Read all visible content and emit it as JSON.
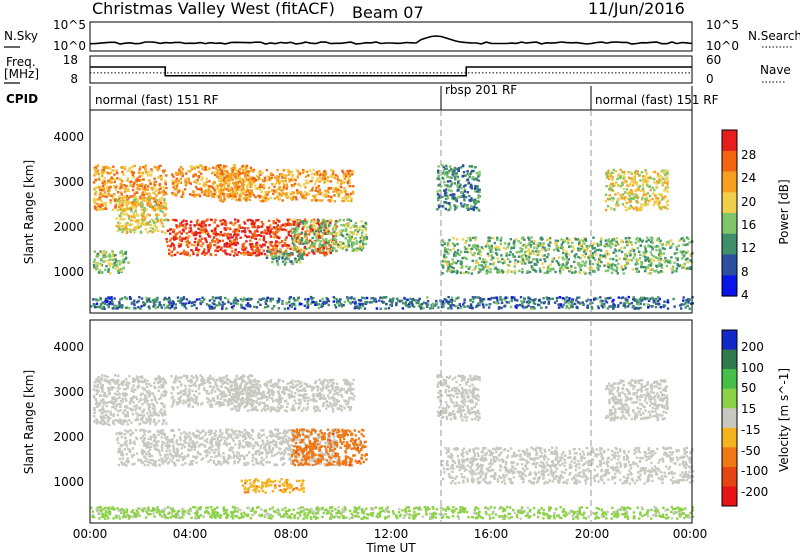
{
  "header": {
    "title": "Christmas Valley West (fitACF)",
    "beam": "Beam 07",
    "date": "11/Jun/2016"
  },
  "noise_panel": {
    "left_label": "N.Sky",
    "right_label": "N.Search",
    "left_ticks": [
      "10^5",
      "10^0"
    ],
    "right_ticks": [
      "10^5",
      "10^0"
    ]
  },
  "freq_panel": {
    "left_label": "Freq. [MHz]",
    "left_label_line1": "Freq.",
    "left_label_line2": "[MHz]",
    "right_label": "Nave",
    "left_ticks": [
      "18",
      "8"
    ],
    "right_ticks": [
      "60",
      "0"
    ]
  },
  "cpid": {
    "label": "CPID",
    "segments": [
      {
        "text": "normal (fast) 151 RF",
        "start_hour": 0
      },
      {
        "text": "rbsp 201 RF",
        "start_hour": 14
      },
      {
        "text": "normal (fast) 151 RF",
        "start_hour": 20
      }
    ]
  },
  "time_axis": {
    "label": "Time UT",
    "ticks": [
      "00:00",
      "04:00",
      "08:00",
      "12:00",
      "16:00",
      "20:00",
      "00:00"
    ],
    "range_hours": [
      0,
      24
    ]
  },
  "colors": {
    "power": [
      "#0a14e6",
      "#2c4ea0",
      "#3e8f6a",
      "#7ec46a",
      "#f0d04a",
      "#f5a020",
      "#f26412",
      "#e61e1e"
    ],
    "velocity": [
      "#1428c8",
      "#2e7a4e",
      "#46c046",
      "#8cd246",
      "#c8c8c0",
      "#f5b41e",
      "#f07814",
      "#e64614",
      "#e61414"
    ]
  },
  "chart_data": [
    {
      "type": "line",
      "title": "",
      "series": [
        {
          "name": "N.Sky",
          "style": "solid"
        },
        {
          "name": "N.Search",
          "style": "dotted"
        }
      ],
      "ylabel": "N.Sky",
      "ylim_log10": [
        0,
        5
      ]
    },
    {
      "type": "line",
      "series": [
        {
          "name": "Freq.",
          "style": "solid",
          "steps": [
            {
              "x": 0,
              "y": 14
            },
            {
              "x": 3,
              "y": 10.5
            },
            {
              "x": 15,
              "y": 14
            },
            {
              "x": 24,
              "y": 14
            }
          ]
        },
        {
          "name": "Nave",
          "style": "dotted",
          "steps": [
            {
              "x": 0,
              "y": 22
            },
            {
              "x": 24,
              "y": 22
            }
          ]
        }
      ],
      "ylabel": "Freq. [MHz]",
      "ylim": [
        8,
        18
      ],
      "ylim_right": [
        0,
        60
      ]
    },
    {
      "type": "heatmap",
      "quantity": "Power",
      "ylabel": "Slant Range [km]",
      "xlabel": "",
      "ylim": [
        0,
        4500
      ],
      "yticks": [
        "1000",
        "2000",
        "3000",
        "4000"
      ],
      "colorbar": {
        "label": "Power [dB]",
        "ticks": [
          "28",
          "24",
          "20",
          "16",
          "12",
          "8",
          "4"
        ],
        "range": [
          0,
          32
        ]
      },
      "regions": [
        {
          "t": [
            0.1,
            1.5
          ],
          "r": [
            900,
            1400
          ],
          "v": 14
        },
        {
          "t": [
            0.1,
            3.0
          ],
          "r": [
            2300,
            3300
          ],
          "v": 22
        },
        {
          "t": [
            1.0,
            3.0
          ],
          "r": [
            1800,
            2600
          ],
          "v": 18
        },
        {
          "t": [
            3.2,
            6.5
          ],
          "r": [
            2600,
            3300
          ],
          "v": 23
        },
        {
          "t": [
            3.0,
            9.8
          ],
          "r": [
            1300,
            2100
          ],
          "v": 28
        },
        {
          "t": [
            5.0,
            10.5
          ],
          "r": [
            2500,
            3200
          ],
          "v": 22
        },
        {
          "t": [
            7.0,
            8.5
          ],
          "r": [
            1100,
            1400
          ],
          "v": 12
        },
        {
          "t": [
            8.0,
            11.0
          ],
          "r": [
            1400,
            2100
          ],
          "v": 14
        },
        {
          "t": [
            13.8,
            15.5
          ],
          "r": [
            2300,
            3300
          ],
          "v": 10
        },
        {
          "t": [
            14.0,
            24.0
          ],
          "r": [
            900,
            1700
          ],
          "v": 13
        },
        {
          "t": [
            20.5,
            23.0
          ],
          "r": [
            2300,
            3200
          ],
          "v": 18
        },
        {
          "t": [
            0.0,
            24.0
          ],
          "r": [
            120,
            380
          ],
          "v": 8
        }
      ]
    },
    {
      "type": "heatmap",
      "quantity": "Velocity",
      "ylabel": "Slant Range [km]",
      "xlabel": "Time UT",
      "ylim": [
        0,
        4500
      ],
      "yticks": [
        "1000",
        "2000",
        "3000",
        "4000"
      ],
      "colorbar": {
        "label": "Velocity [m s^-1]",
        "ticks": [
          "200",
          "100",
          "50",
          "15",
          "-15",
          "-50",
          "-100",
          "-200"
        ],
        "range": [
          -250,
          250
        ]
      },
      "regions": [
        {
          "t": [
            0.1,
            3.0
          ],
          "r": [
            2200,
            3300
          ],
          "v": 0
        },
        {
          "t": [
            1.0,
            9.8
          ],
          "r": [
            1300,
            2100
          ],
          "v": 0
        },
        {
          "t": [
            3.2,
            6.5
          ],
          "r": [
            2600,
            3300
          ],
          "v": 0
        },
        {
          "t": [
            5.5,
            10.5
          ],
          "r": [
            2500,
            3200
          ],
          "v": 0
        },
        {
          "t": [
            8.0,
            11.0
          ],
          "r": [
            1300,
            2100
          ],
          "v": -120
        },
        {
          "t": [
            6.0,
            8.5
          ],
          "r": [
            700,
            1000
          ],
          "v": -70
        },
        {
          "t": [
            13.8,
            15.5
          ],
          "r": [
            2300,
            3300
          ],
          "v": 5
        },
        {
          "t": [
            14.0,
            24.0
          ],
          "r": [
            900,
            1700
          ],
          "v": 0
        },
        {
          "t": [
            20.5,
            23.0
          ],
          "r": [
            2300,
            3200
          ],
          "v": 0
        },
        {
          "t": [
            0.0,
            24.0
          ],
          "r": [
            120,
            380
          ],
          "v": 40
        }
      ]
    }
  ]
}
